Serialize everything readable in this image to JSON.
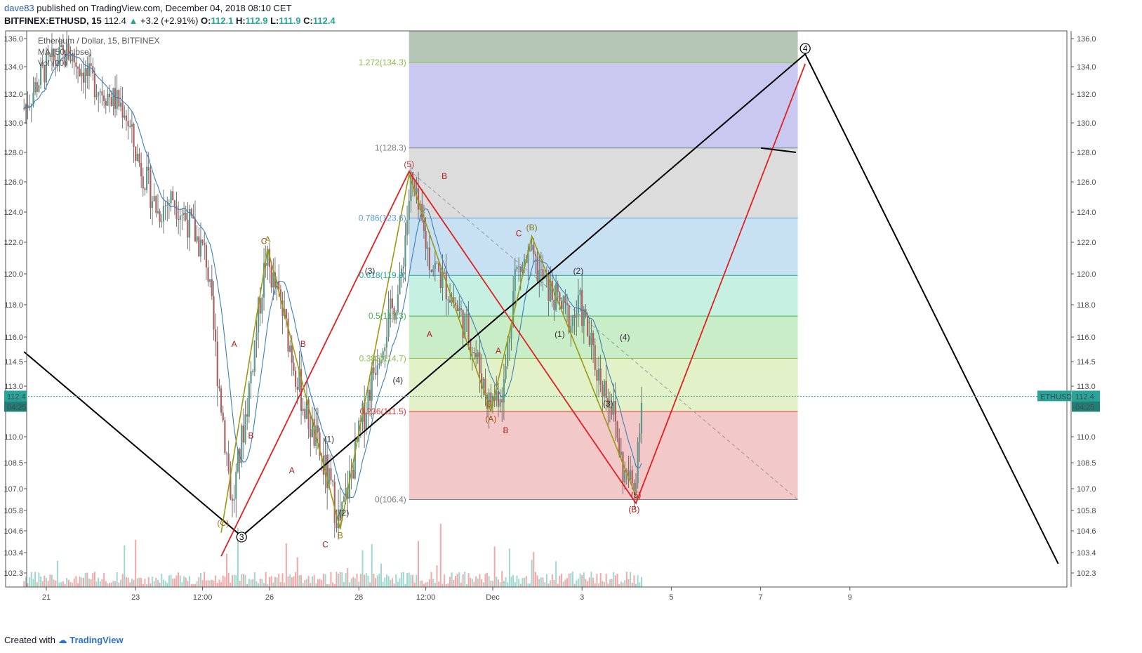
{
  "header": {
    "author": "dave83",
    "published_text": "published on TradingView.com, December 04, 2018 08:10 CET",
    "symbol": "BITFINEX:ETHUSD, 15",
    "last": "112.4",
    "change": "+3.2 (+2.91%)",
    "o_label": "O:",
    "o_value": "112.1",
    "h_label": "H:",
    "h_value": "112.9",
    "l_label": "L:",
    "l_value": "111.9",
    "c_label": "C:",
    "c_value": "112.4"
  },
  "legend": {
    "line1": "Ethereum / Dollar, 15, BITFINEX",
    "line2": "MA (50, close)",
    "line3": "Vol (20)"
  },
  "footer": {
    "created_with": "Created with",
    "brand": "TradingView"
  },
  "price_tag": {
    "value": "112.4",
    "timer": "04:25",
    "symbol_tag": "ETHUSD",
    "color": "#26a69a"
  },
  "colors": {
    "fib_gray": "#8b8b8b",
    "red_wave": "#e02020",
    "olive_wave": "#9a9a10",
    "black_wave": "#000000",
    "ma_line": "#3b7fb8"
  },
  "chart_data": {
    "type": "line",
    "title": "Ethereum / Dollar, 15, BITFINEX",
    "x_ticks": [
      "21",
      "23",
      "12:00",
      "26",
      "28",
      "12:00",
      "Dec",
      "3",
      "5",
      "7",
      "9"
    ],
    "y_ticks": [
      "136.0",
      "134.0",
      "132.0",
      "130.0",
      "128.0",
      "126.0",
      "124.0",
      "122.0",
      "120.0",
      "118.0",
      "116.0",
      "114.5",
      "113.0",
      "110.0",
      "108.5",
      "107.0",
      "105.8",
      "104.6",
      "103.4",
      "102.3"
    ],
    "ylim": [
      101.8,
      136.6
    ],
    "last_price": 112.4,
    "fib_levels": [
      {
        "label": "1.272(134.3)",
        "value": 134.3,
        "color": "#8bc34a",
        "fill": "#c8c8f0"
      },
      {
        "label": "1(128.3)",
        "value": 128.3,
        "color": "#808080",
        "fill": "#dcdcdc"
      },
      {
        "label": "0.786(123.6)",
        "value": 123.6,
        "color": "#5b9bd5",
        "fill": "#c7e0f2"
      },
      {
        "label": "0.618(119.9)",
        "value": 119.9,
        "color": "#26a69a",
        "fill": "#c6f0e2"
      },
      {
        "label": "0.5(117.3)",
        "value": 117.3,
        "color": "#4caf50",
        "fill": "#c9edc6"
      },
      {
        "label": "0.382(114.7)",
        "value": 114.7,
        "color": "#8bc34a",
        "fill": "#e3f1c8"
      },
      {
        "label": "0.236(111.5)",
        "value": 111.5,
        "color": "#e53935",
        "fill": "#f2c8c8"
      },
      {
        "label": "0(106.4)",
        "value": 106.4,
        "color": "#808080",
        "fill": ""
      }
    ],
    "wave_labels": [
      {
        "text": "4",
        "circled": true,
        "color": "#000000",
        "date": "Dec 8 00:00",
        "price": 135.1
      },
      {
        "text": "3",
        "circled": true,
        "color": "#000000",
        "date": "Nov 25 09:00",
        "price": 104.1
      },
      {
        "text": "(5)",
        "circled": false,
        "color": "#b04040",
        "date": "Nov 29 03:00",
        "price": 127.0
      },
      {
        "text": "B",
        "circled": false,
        "color": "#b02020",
        "date": "Nov 29 22:00",
        "price": 126.2
      },
      {
        "text": "A",
        "circled": false,
        "color": "#b02020",
        "date": "Nov 29 14:00",
        "price": 116.0
      },
      {
        "text": "(B)",
        "circled": false,
        "color": "#8a7a10",
        "date": "Dec 1 21:00",
        "price": 122.8
      },
      {
        "text": "C",
        "circled": false,
        "color": "#b02020",
        "date": "Dec 1 14:00",
        "price": 122.4
      },
      {
        "text": "(2)",
        "circled": false,
        "color": "#333333",
        "date": "Dec 2 22:00",
        "price": 120.0
      },
      {
        "text": "(1)",
        "circled": false,
        "color": "#333333",
        "date": "Dec 2 12:00",
        "price": 116.0
      },
      {
        "text": "(4)",
        "circled": false,
        "color": "#333333",
        "date": "Dec 3 23:00",
        "price": 115.8
      },
      {
        "text": "(3)",
        "circled": false,
        "color": "#333333",
        "date": "Dec 3 14:00",
        "price": 111.8
      },
      {
        "text": "(A)",
        "circled": false,
        "color": "#a05010",
        "date": "Nov 30 23:00",
        "price": 110.9
      },
      {
        "text": "C",
        "circled": false,
        "color": "#a05010",
        "date": "Nov 30 22:00",
        "price": 111.8
      },
      {
        "text": "A",
        "circled": false,
        "color": "#b02020",
        "date": "Dec 1 03:00",
        "price": 115.0
      },
      {
        "text": "B",
        "circled": false,
        "color": "#b02020",
        "date": "Dec 1 07:00",
        "price": 110.2
      },
      {
        "text": "(B)",
        "circled": false,
        "color": "#b02020",
        "date": "Dec 4 04:00",
        "price": 105.7
      },
      {
        "text": "(5)",
        "circled": false,
        "color": "#b02020",
        "date": "Dec 4 05:00",
        "price": 106.5
      },
      {
        "text": "C",
        "circled": false,
        "color": "#a05010",
        "date": "Nov 25 21:00",
        "price": 121.9
      },
      {
        "text": "A",
        "circled": false,
        "color": "#a07010",
        "date": "Nov 25 23:00",
        "price": 122.0
      },
      {
        "text": "A",
        "circled": false,
        "color": "#b02020",
        "date": "Nov 25 05:00",
        "price": 115.4
      },
      {
        "text": "B",
        "circled": false,
        "color": "#b02020",
        "date": "Nov 25 14:00",
        "price": 109.9
      },
      {
        "text": "B",
        "circled": false,
        "color": "#b02020",
        "date": "Nov 26 18:00",
        "price": 115.4
      },
      {
        "text": "A",
        "circled": false,
        "color": "#b02020",
        "date": "Nov 26 12:00",
        "price": 107.9
      },
      {
        "text": "(1)",
        "circled": false,
        "color": "#333333",
        "date": "Nov 27 08:00",
        "price": 109.7
      },
      {
        "text": "(2)",
        "circled": false,
        "color": "#333333",
        "date": "Nov 27 16:00",
        "price": 105.5
      },
      {
        "text": "B",
        "circled": false,
        "color": "#a07010",
        "date": "Nov 27 14:00",
        "price": 104.2
      },
      {
        "text": "C",
        "circled": false,
        "color": "#b02020",
        "date": "Nov 27 06:00",
        "price": 103.7
      },
      {
        "text": "(3)",
        "circled": false,
        "color": "#333333",
        "date": "Nov 28 06:00",
        "price": 120.0
      },
      {
        "text": "(4)",
        "circled": false,
        "color": "#333333",
        "date": "Nov 28 21:00",
        "price": 113.2
      },
      {
        "text": "(C)",
        "circled": false,
        "color": "#a07010",
        "date": "Nov 24 23:00",
        "price": 104.9
      }
    ]
  }
}
